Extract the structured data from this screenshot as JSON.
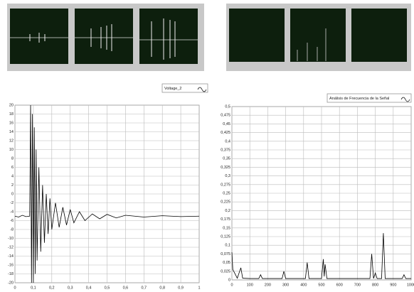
{
  "chart_data": [
    {
      "type": "line",
      "x": [
        0,
        0.02,
        0.04,
        0.06,
        0.08,
        0.085,
        0.09,
        0.095,
        0.1,
        0.105,
        0.11,
        0.115,
        0.12,
        0.13,
        0.14,
        0.15,
        0.16,
        0.17,
        0.18,
        0.19,
        0.2,
        0.22,
        0.24,
        0.26,
        0.28,
        0.3,
        0.32,
        0.35,
        0.38,
        0.42,
        0.46,
        0.5,
        0.55,
        0.6,
        0.7,
        0.8,
        0.9,
        1
      ],
      "series": [
        {
          "name": "Voltage_2",
          "color": "#000000",
          "values": [
            -5,
            -5.2,
            -4.8,
            -5.1,
            -5,
            20,
            -20,
            18,
            -20,
            15,
            -18,
            10,
            -15,
            6,
            -13,
            2,
            -11,
            0,
            -9,
            -1,
            -8,
            -2,
            -7.5,
            -3,
            -7,
            -3.5,
            -6.5,
            -4,
            -6,
            -4.5,
            -5.6,
            -4.6,
            -5.4,
            -4.8,
            -5.2,
            -4.9,
            -5.1,
            -5
          ]
        }
      ],
      "xlim": [
        0,
        1
      ],
      "xticks": [
        0,
        {
          "value": 0.1,
          "label": "0,1"
        },
        {
          "value": 0.2,
          "label": "0,2"
        },
        {
          "value": 0.3,
          "label": "0,3"
        },
        {
          "value": 0.4,
          "label": "0,4"
        },
        {
          "value": 0.5,
          "label": "0,5"
        },
        {
          "value": 0.6,
          "label": "0,6"
        },
        {
          "value": 0.7,
          "label": "0,7"
        },
        {
          "value": 0.8,
          "label": "0,8"
        },
        {
          "value": 0.9,
          "label": "0,9"
        },
        1
      ],
      "ylim": [
        -20,
        20
      ],
      "yticks": [
        -20,
        -18,
        -16,
        -14,
        -12,
        -10,
        -8,
        -6,
        -4,
        -2,
        0,
        2,
        4,
        6,
        8,
        10,
        12,
        14,
        16,
        18,
        20
      ],
      "grid": true
    },
    {
      "type": "line",
      "x": [
        0,
        5,
        15,
        30,
        50,
        60,
        100,
        150,
        160,
        170,
        280,
        290,
        300,
        410,
        420,
        430,
        500,
        510,
        515,
        520,
        530,
        700,
        770,
        780,
        790,
        800,
        810,
        835,
        845,
        855,
        900,
        950,
        960,
        970,
        1000
      ],
      "series": [
        {
          "name": "Análisis de Frecuencia de la Señal",
          "color": "#000000",
          "values": [
            0.08,
            0.03,
            0.02,
            0.005,
            0.035,
            0.005,
            0.004,
            0.004,
            0.015,
            0.004,
            0.004,
            0.025,
            0.004,
            0.004,
            0.05,
            0.004,
            0.004,
            0.06,
            0.01,
            0.045,
            0.004,
            0.004,
            0.004,
            0.075,
            0.004,
            0.02,
            0.004,
            0.004,
            0.135,
            0.004,
            0.004,
            0.004,
            0.015,
            0.004,
            0.004
          ]
        }
      ],
      "xlim": [
        0,
        1000
      ],
      "xticks": [
        0,
        100,
        200,
        300,
        400,
        500,
        600,
        700,
        800,
        900,
        1000
      ],
      "ylim": [
        0,
        0.5
      ],
      "yticks": [
        0,
        {
          "value": 0.025,
          "label": "0,025"
        },
        {
          "value": 0.05,
          "label": "0,05"
        },
        {
          "value": 0.075,
          "label": "0,075"
        },
        {
          "value": 0.1,
          "label": "0,1"
        },
        {
          "value": 0.125,
          "label": "0,125"
        },
        {
          "value": 0.15,
          "label": "0,15"
        },
        {
          "value": 0.175,
          "label": "0,175"
        },
        {
          "value": 0.2,
          "label": "0,2"
        },
        {
          "value": 0.225,
          "label": "0,225"
        },
        {
          "value": 0.25,
          "label": "0,25"
        },
        {
          "value": 0.275,
          "label": "0,275"
        },
        {
          "value": 0.3,
          "label": "0,3"
        },
        {
          "value": 0.325,
          "label": "0,325"
        },
        {
          "value": 0.35,
          "label": "0,35"
        },
        {
          "value": 0.375,
          "label": "0,375"
        },
        {
          "value": 0.4,
          "label": "0,4"
        },
        {
          "value": 0.425,
          "label": "0,425"
        },
        {
          "value": 0.45,
          "label": "0,45"
        },
        {
          "value": 0.475,
          "label": "0,475"
        },
        {
          "value": 0.5,
          "label": "0,5"
        }
      ],
      "grid": true
    }
  ]
}
